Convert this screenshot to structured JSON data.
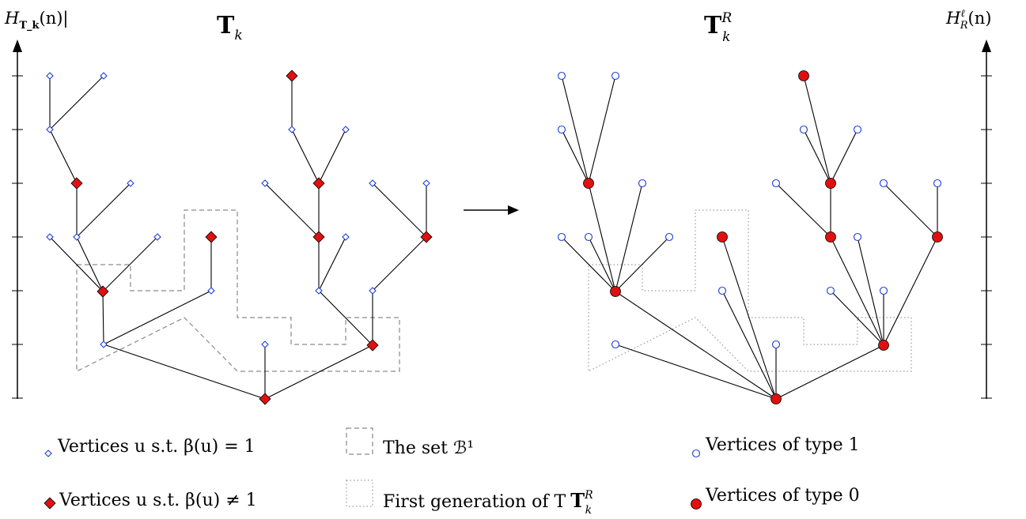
{
  "left_tree": {
    "title": "T",
    "title_sub": "k",
    "axis_label": "H",
    "axis_label_sub": "T_k",
    "axis_label_tail": "(n)|",
    "nodes": [
      {
        "id": "a1",
        "kind": "one"
      },
      {
        "id": "a2",
        "kind": "one"
      },
      {
        "id": "a3",
        "kind": "one"
      },
      {
        "id": "b1",
        "kind": "notone"
      },
      {
        "id": "b2",
        "kind": "one"
      },
      {
        "id": "b3",
        "kind": "one"
      },
      {
        "id": "b4",
        "kind": "one"
      },
      {
        "id": "b5",
        "kind": "one"
      },
      {
        "id": "c1",
        "kind": "notone"
      },
      {
        "id": "c2",
        "kind": "one"
      },
      {
        "id": "c3",
        "kind": "one"
      },
      {
        "id": "d1",
        "kind": "notone"
      },
      {
        "id": "d2",
        "kind": "notone"
      },
      {
        "id": "d3",
        "kind": "one"
      },
      {
        "id": "e1",
        "kind": "one"
      },
      {
        "id": "e2",
        "kind": "one"
      },
      {
        "id": "e3",
        "kind": "notone"
      },
      {
        "id": "f1",
        "kind": "notone"
      },
      {
        "id": "f2",
        "kind": "one"
      },
      {
        "id": "f3",
        "kind": "one"
      },
      {
        "id": "f4",
        "kind": "one"
      },
      {
        "id": "g1",
        "kind": "one"
      },
      {
        "id": "g2",
        "kind": "one"
      },
      {
        "id": "g3",
        "kind": "one"
      },
      {
        "id": "g4",
        "kind": "one"
      },
      {
        "id": "g5",
        "kind": "notone"
      },
      {
        "id": "root",
        "kind": "notone"
      }
    ]
  },
  "right_tree": {
    "title": "T",
    "title_sub": "k",
    "title_sup": "R",
    "axis_label": "H",
    "axis_label_sub": "R",
    "axis_label_sup": "ℓ",
    "axis_label_tail": "(n)"
  },
  "legend": {
    "beta_one": "Vertices u s.t. β(u) = 1",
    "beta_not_one": "Vertices u s.t. β(u) ≠ 1",
    "set_b": "The set ℬ¹",
    "first_gen": "First generation of T",
    "first_gen_sub": "k",
    "first_gen_sup": "R",
    "type1": "Vertices of type 1",
    "type0": "Vertices of type 0"
  },
  "colors": {
    "one_marker": "#1f3fd6",
    "notone_marker": "#e01010",
    "edge": "#000000",
    "set_b_outline": "#8a8a8a",
    "first_gen_outline": "#9a9a9a"
  }
}
